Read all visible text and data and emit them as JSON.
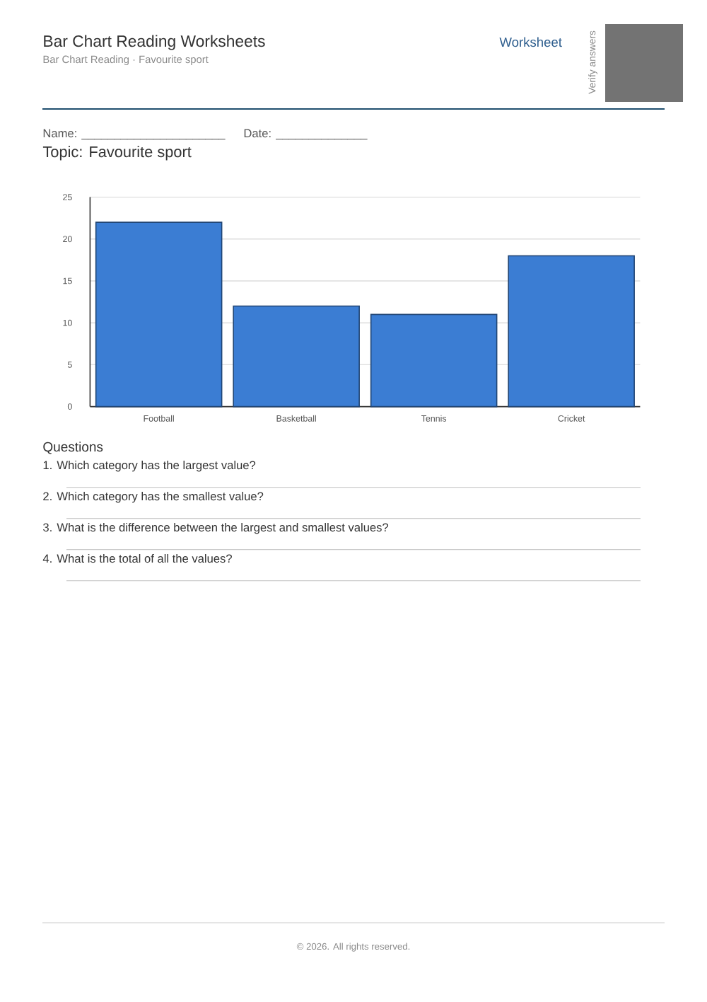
{
  "chart_data": {
    "type": "bar",
    "title": "Bar Chart Reading Worksheets",
    "subtitle": "Bar Chart Reading · Favourite sport",
    "categories": [
      "Football",
      "Basketball",
      "Tennis",
      "Cricket"
    ],
    "values": [
      22,
      12,
      11,
      18
    ],
    "color": "#3b7dd3",
    "ylim": [
      0,
      25
    ],
    "yticks": [
      0,
      5,
      10,
      15,
      20,
      25
    ],
    "grid": "y",
    "annotations": [
      "Worksheet",
      "Verify answers",
      "Name: ______________________",
      "Date: ______________",
      "Topic: Favourite sport",
      "Questions",
      "1. Which category has the largest value?",
      "2. Which category has the smallest value?",
      "3. What is the difference between the largest and smallest values?",
      "4. What is the total of all the values?",
      "© 2026. All rights reserved."
    ]
  }
}
